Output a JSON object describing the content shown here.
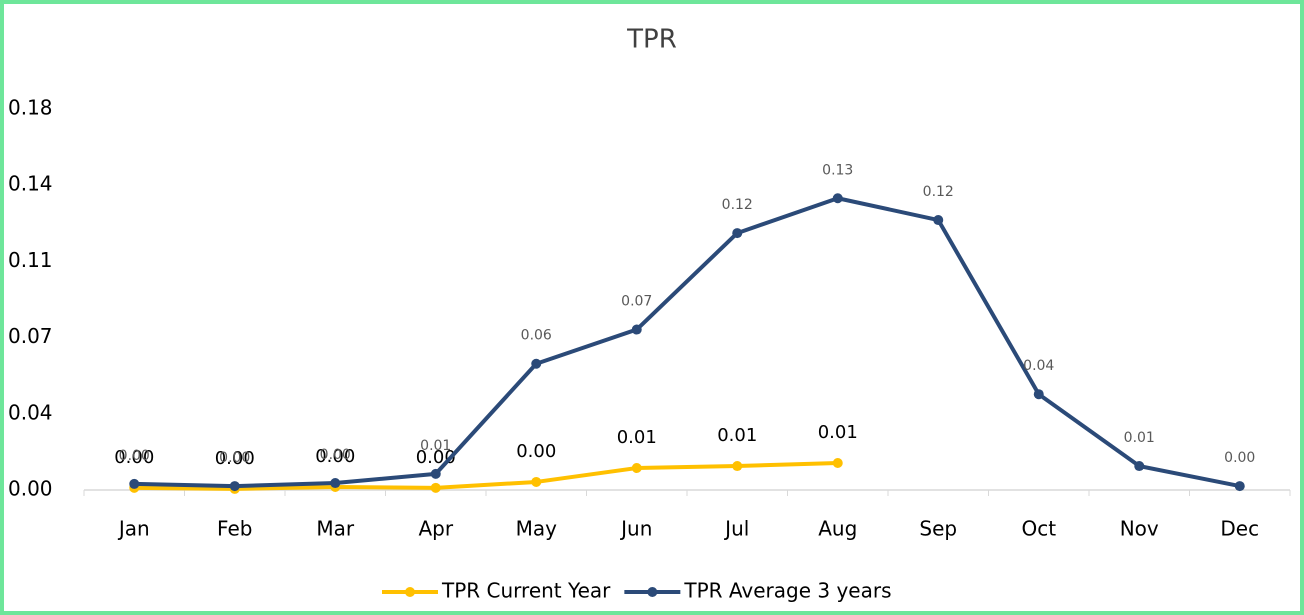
{
  "chart_data": {
    "type": "line",
    "title": "TPR",
    "categories": [
      "Jan",
      "Feb",
      "Mar",
      "Apr",
      "May",
      "Jun",
      "Jul",
      "Aug",
      "Sep",
      "Oct",
      "Nov",
      "Dec"
    ],
    "series": [
      {
        "name": "TPR Current Year",
        "color": "#FFC000",
        "values": [
          0.001,
          0.0005,
          0.0014,
          0.001,
          0.0037,
          0.0101,
          0.011,
          0.0124,
          null,
          null,
          null,
          null
        ],
        "value_labels": [
          "0.00",
          "0.00",
          "0.00",
          "0.00",
          "0.00",
          "0.01",
          "0.01",
          "0.01",
          null,
          null,
          null,
          null
        ]
      },
      {
        "name": "TPR Average 3 years",
        "color": "#2B4A78",
        "values": [
          0.0028,
          0.0018,
          0.0032,
          0.0074,
          0.058,
          0.0737,
          0.118,
          0.134,
          0.124,
          0.044,
          0.011,
          0.0018
        ],
        "value_labels": [
          "0.00",
          "0.00",
          "0.00",
          "0.01",
          "0.06",
          "0.07",
          "0.12",
          "0.13",
          "0.12",
          "0.04",
          "0.01",
          "0.00"
        ]
      }
    ],
    "ylim": [
      0,
      0.175
    ],
    "yticks": [
      {
        "value": 0,
        "label": "0.00"
      },
      {
        "value": 0.035,
        "label": "0.04"
      },
      {
        "value": 0.07,
        "label": "0.07"
      },
      {
        "value": 0.105,
        "label": "0.11"
      },
      {
        "value": 0.14,
        "label": "0.14"
      },
      {
        "value": 0.175,
        "label": "0.18"
      }
    ],
    "grid": false,
    "legend": "bottom"
  }
}
